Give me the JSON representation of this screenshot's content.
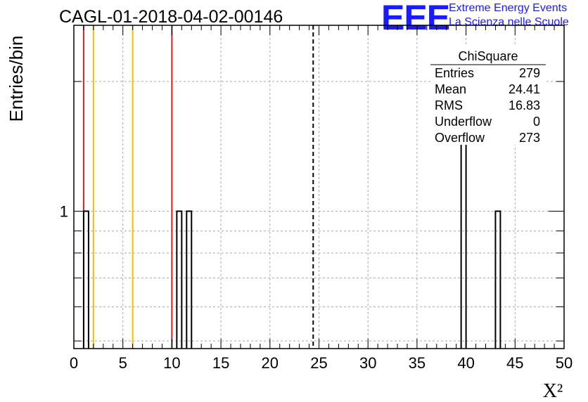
{
  "header": {
    "run_title": "CAGL-01-2018-04-02-00146",
    "logo_text": "EEE",
    "logo_line1": "Extreme Energy Events",
    "logo_line2": "La Scienza nelle Scuole"
  },
  "colors": {
    "logo": "#1a1aff",
    "red_line": "#e02020",
    "yellow_line": "#f0c000",
    "grid": "#aaaaaa"
  },
  "chart_data": {
    "type": "bar",
    "title": "CAGL-01-2018-04-02-00146",
    "xlabel": "X²",
    "ylabel": "Entries/bin",
    "xlim": [
      0,
      50
    ],
    "ylim": [
      0.48,
      2.7
    ],
    "log_y": true,
    "grid": true,
    "bin_width": 0.5,
    "bins": [
      {
        "x0": 1.0,
        "x1": 1.5,
        "value": 1
      },
      {
        "x0": 10.5,
        "x1": 11.0,
        "value": 1
      },
      {
        "x0": 11.5,
        "x1": 12.0,
        "value": 1
      },
      {
        "x0": 39.5,
        "x1": 40.0,
        "value": 2
      },
      {
        "x0": 43.0,
        "x1": 43.5,
        "value": 1
      }
    ],
    "x_ticks": [
      0,
      5,
      10,
      15,
      20,
      25,
      30,
      35,
      40,
      45,
      50
    ],
    "y_major_ticks": [
      1
    ],
    "y_minor_ticks": [
      0.5,
      0.6,
      0.7,
      0.8,
      0.9,
      2
    ],
    "vertical_lines": [
      {
        "x": 1.0,
        "color": "#e02020",
        "style": "solid"
      },
      {
        "x": 2.0,
        "color": "#f0c000",
        "style": "solid"
      },
      {
        "x": 6.0,
        "color": "#f0c000",
        "style": "solid"
      },
      {
        "x": 10.0,
        "color": "#e02020",
        "style": "solid"
      },
      {
        "x": 24.41,
        "color": "#000000",
        "style": "dashed"
      }
    ],
    "stats_box": {
      "title": "ChiSquare",
      "rows": [
        {
          "label": "Entries",
          "value": "279"
        },
        {
          "label": "Mean",
          "value": "24.41"
        },
        {
          "label": "RMS",
          "value": "16.83"
        },
        {
          "label": "Underflow",
          "value": "0"
        },
        {
          "label": "Overflow",
          "value": "273"
        }
      ]
    }
  }
}
